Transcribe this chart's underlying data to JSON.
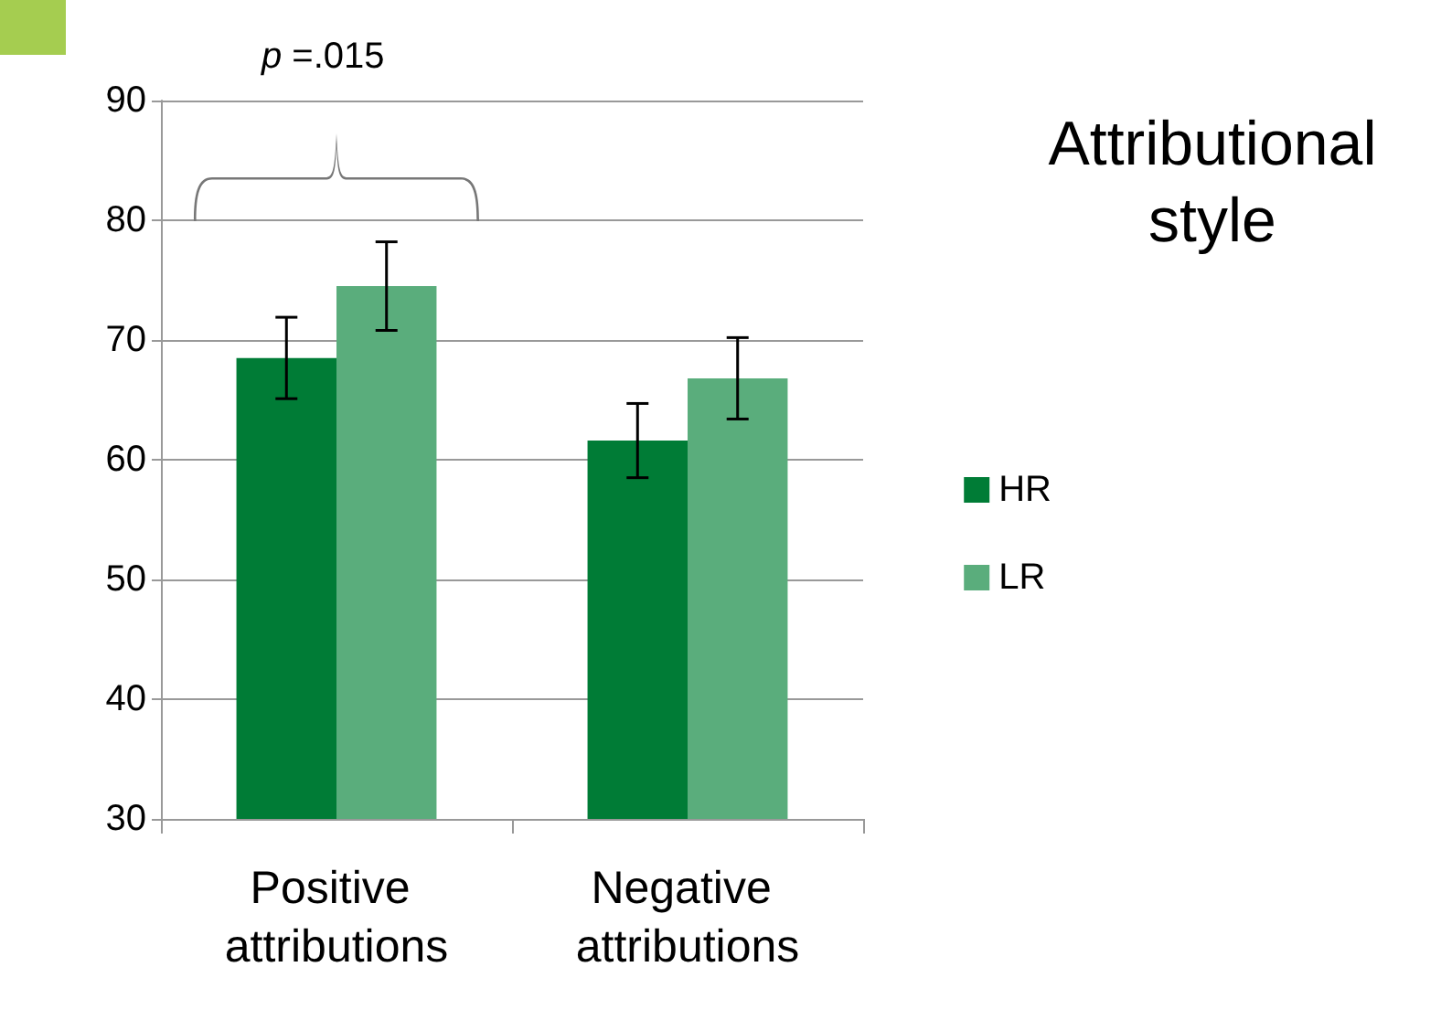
{
  "chart_data": {
    "type": "bar",
    "title": "Attributional style",
    "categories": [
      "Positive attributions",
      "Negative attributions"
    ],
    "series": [
      {
        "name": "HR",
        "color": "#007c36",
        "values": [
          68.5,
          61.6
        ],
        "errors": [
          3.4,
          3.1
        ]
      },
      {
        "name": "LR",
        "color": "#5aad7c",
        "values": [
          74.5,
          66.8
        ],
        "errors": [
          3.7,
          3.4
        ]
      }
    ],
    "ylim": [
      30,
      90
    ],
    "yticks": [
      30,
      40,
      50,
      60,
      70,
      80,
      90
    ],
    "grid": "y",
    "legend": "right",
    "annotations": [
      "p =.015"
    ]
  }
}
